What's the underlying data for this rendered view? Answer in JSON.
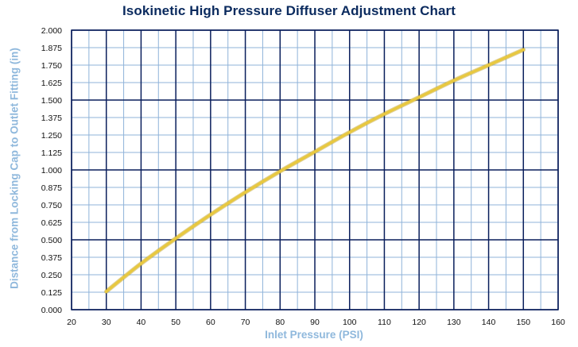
{
  "chart_data": {
    "type": "line",
    "title": "Isokinetic High Pressure Diffuser Adjustment Chart",
    "xlabel": "Inlet Pressure (PSI)",
    "ylabel": "Distance from Locking Cap to Outlet Fitting (in)",
    "xlim": [
      20,
      160
    ],
    "ylim": [
      0,
      2
    ],
    "x_ticks": [
      "20",
      "30",
      "40",
      "50",
      "60",
      "70",
      "80",
      "90",
      "100",
      "110",
      "120",
      "130",
      "140",
      "150",
      "160"
    ],
    "y_ticks": [
      "0.000",
      "0.125",
      "0.250",
      "0.375",
      "0.500",
      "0.625",
      "0.750",
      "0.875",
      "1.000",
      "1.125",
      "1.250",
      "1.375",
      "1.500",
      "1.625",
      "1.750",
      "1.875",
      "2.000"
    ],
    "grid": true,
    "series": [
      {
        "color": "#e8c840",
        "x": [
          30,
          40,
          50,
          60,
          70,
          80,
          90,
          100,
          110,
          120,
          130,
          140,
          150
        ],
        "y": [
          0.13,
          0.33,
          0.51,
          0.68,
          0.84,
          0.99,
          1.13,
          1.27,
          1.4,
          1.52,
          1.64,
          1.75,
          1.86
        ]
      }
    ]
  },
  "colors": {
    "title": "#0a2a5e",
    "axis_label": "#8fb8dc",
    "major_grid": "#0a1f5c",
    "minor_grid": "#8fb3d9",
    "curve": "#e8c840"
  }
}
